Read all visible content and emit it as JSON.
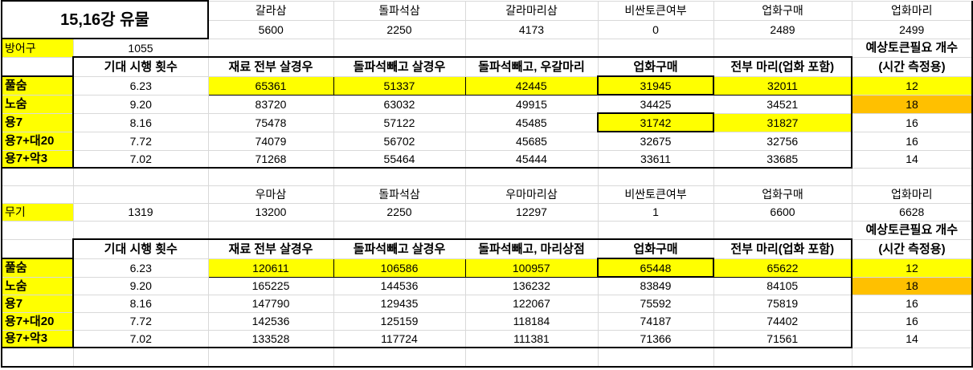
{
  "title": "15,16강 유물",
  "colors": {
    "highlight": "#ffff00",
    "warning": "#ffc000",
    "gridline": "#d9d9d9"
  },
  "sections": [
    {
      "category": "방어구",
      "category_value": "1055",
      "materials": [
        {
          "name": "갈라삼",
          "value": "5600"
        },
        {
          "name": "돌파석삼",
          "value": "2250"
        },
        {
          "name": "갈라마리삼",
          "value": "4173"
        },
        {
          "name": "비싼토큰여부",
          "value": "0"
        },
        {
          "name": "업화구매",
          "value": "2489"
        },
        {
          "name": "업화마리",
          "value": "2499"
        }
      ],
      "token_header": [
        "예상토큰필요 개수",
        "(시간 측정용)"
      ],
      "columns": [
        "기대 시행 횟수",
        "재료 전부 살경우",
        "돌파석빼고 살경우",
        "돌파석빼고, 우갈마리",
        "업화구매",
        "전부 마리(업화 포함)"
      ],
      "rows": [
        {
          "label": "풀숨",
          "expected": "6.23",
          "values": [
            "65361",
            "51337",
            "42445",
            "31945",
            "32011"
          ],
          "tokens": "12"
        },
        {
          "label": "노숨",
          "expected": "9.20",
          "values": [
            "83720",
            "63032",
            "49915",
            "34425",
            "34521"
          ],
          "tokens": "18"
        },
        {
          "label": "용7",
          "expected": "8.16",
          "values": [
            "75478",
            "57122",
            "45485",
            "31742",
            "31827"
          ],
          "tokens": "16"
        },
        {
          "label": "용7+대20",
          "expected": "7.72",
          "values": [
            "74079",
            "56702",
            "45685",
            "32675",
            "32756"
          ],
          "tokens": "16"
        },
        {
          "label": "용7+악3",
          "expected": "7.02",
          "values": [
            "71268",
            "55464",
            "45444",
            "33611",
            "33685"
          ],
          "tokens": "14"
        }
      ]
    },
    {
      "category": "무기",
      "category_value": "1319",
      "materials": [
        {
          "name": "우마삼",
          "value": "13200"
        },
        {
          "name": "돌파석삼",
          "value": "2250"
        },
        {
          "name": "우마마리삼",
          "value": "12297"
        },
        {
          "name": "비싼토큰여부",
          "value": "1"
        },
        {
          "name": "업화구매",
          "value": "6600"
        },
        {
          "name": "업화마리",
          "value": "6628"
        }
      ],
      "token_header": [
        "예상토큰필요 개수",
        "(시간 측정용)"
      ],
      "columns": [
        "기대 시행 횟수",
        "재료 전부 살경우",
        "돌파석빼고 살경우",
        "돌파석빼고, 마리상점",
        "업화구매",
        "전부 마리(업화 포함)"
      ],
      "rows": [
        {
          "label": "풀숨",
          "expected": "6.23",
          "values": [
            "120611",
            "106586",
            "100957",
            "65448",
            "65622"
          ],
          "tokens": "12"
        },
        {
          "label": "노숨",
          "expected": "9.20",
          "values": [
            "165225",
            "144536",
            "136232",
            "83849",
            "84105"
          ],
          "tokens": "18"
        },
        {
          "label": "용7",
          "expected": "8.16",
          "values": [
            "147790",
            "129435",
            "122067",
            "75592",
            "75819"
          ],
          "tokens": "16"
        },
        {
          "label": "용7+대20",
          "expected": "7.72",
          "values": [
            "142536",
            "125159",
            "118184",
            "74187",
            "74402"
          ],
          "tokens": "16"
        },
        {
          "label": "용7+악3",
          "expected": "7.02",
          "values": [
            "133528",
            "117724",
            "111381",
            "71366",
            "71561"
          ],
          "tokens": "14"
        }
      ]
    }
  ]
}
